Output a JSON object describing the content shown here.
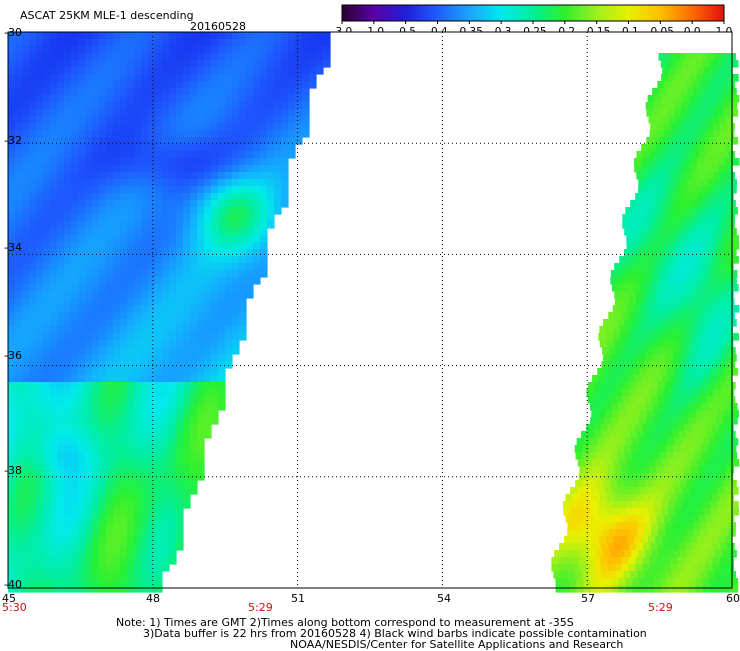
{
  "header": {
    "title": "ASCAT 25KM MLE-1 descending",
    "date": "20160528"
  },
  "colorbar": {
    "labels": [
      "-3.0",
      "-1.0",
      "-0.5",
      "-0.4",
      "-0.35",
      "-0.3",
      "-0.25",
      "-0.2",
      "-0.15",
      "-0.1",
      "-0.05",
      "0.0",
      "1.0"
    ],
    "colors": [
      "#2a0030",
      "#5a00a8",
      "#1f1fd8",
      "#1f5cff",
      "#1aa4ff",
      "#00e8ee",
      "#00ee9a",
      "#2ef02a",
      "#9cf020",
      "#e8f000",
      "#ffbe00",
      "#ff6a00",
      "#e01010"
    ]
  },
  "map": {
    "lon_range": [
      45,
      60
    ],
    "lat_range": [
      -40,
      -30
    ],
    "y_axis_labels": [
      "-30",
      "-32",
      "-34",
      "-36",
      "-38",
      "-40"
    ],
    "x_axis_labels": [
      "45",
      "48",
      "51",
      "54",
      "57",
      "60"
    ],
    "grid": true
  },
  "time_labels": {
    "left": "5:30",
    "middle": "5:29",
    "right": "5:29"
  },
  "notes": {
    "line1": "Note: 1) Times are GMT 2)Times along bottom correspond to measurement at -35S",
    "line2": "3)Data buffer is 22 hrs from 20160528 4) Black wind barbs indicate possible contamination",
    "line3": "NOAA/NESDIS/Center for Satellite Applications and Research"
  }
}
